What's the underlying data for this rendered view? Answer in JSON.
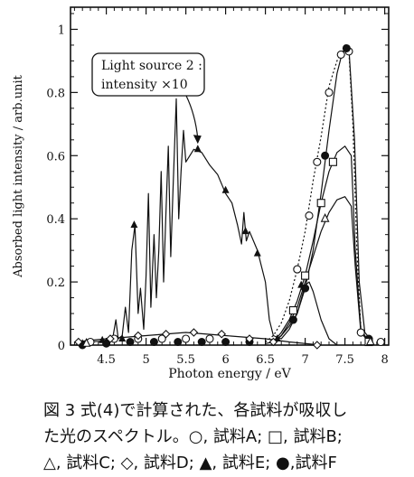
{
  "chart_data": {
    "type": "line",
    "xlabel": "Photon energy / eV",
    "ylabel": "Absorbed light intensity / arb.unit",
    "xlim": [
      4.05,
      8.05
    ],
    "ylim": [
      0,
      1.07
    ],
    "x_ticks": [
      "4.5",
      "5",
      "5.5",
      "6",
      "6.5",
      "7",
      "7.5",
      "8"
    ],
    "y_ticks": [
      "0",
      "0.2",
      "0.4",
      "0.6",
      "0.8",
      "1"
    ],
    "x_tick_values": [
      4.5,
      5,
      5.5,
      6,
      6.5,
      7,
      7.5,
      8
    ],
    "y_tick_values": [
      0,
      0.2,
      0.4,
      0.6,
      0.8,
      1
    ],
    "grid": false,
    "annotation": {
      "line1": "Light source 2 :",
      "line2": "intensity ×10",
      "arrow_to": [
        5.65,
        0.62
      ]
    },
    "series": [
      {
        "marker": "triangle-filled",
        "dash": "solid",
        "points": [
          [
            4.12,
            0.0
          ],
          [
            4.2,
            0.005
          ],
          [
            4.3,
            0.01
          ],
          [
            4.4,
            0.012
          ],
          [
            4.5,
            0.015
          ],
          [
            4.58,
            0.02
          ],
          [
            4.62,
            0.08
          ],
          [
            4.65,
            0.02
          ],
          [
            4.7,
            0.03
          ],
          [
            4.74,
            0.12
          ],
          [
            4.78,
            0.04
          ],
          [
            4.82,
            0.3
          ],
          [
            4.86,
            0.38
          ],
          [
            4.9,
            0.1
          ],
          [
            4.93,
            0.18
          ],
          [
            4.97,
            0.05
          ],
          [
            5.0,
            0.22
          ],
          [
            5.03,
            0.48
          ],
          [
            5.06,
            0.12
          ],
          [
            5.1,
            0.35
          ],
          [
            5.13,
            0.15
          ],
          [
            5.16,
            0.3
          ],
          [
            5.19,
            0.55
          ],
          [
            5.22,
            0.2
          ],
          [
            5.25,
            0.42
          ],
          [
            5.28,
            0.63
          ],
          [
            5.31,
            0.28
          ],
          [
            5.34,
            0.5
          ],
          [
            5.38,
            0.78
          ],
          [
            5.41,
            0.4
          ],
          [
            5.44,
            0.55
          ],
          [
            5.47,
            0.68
          ],
          [
            5.5,
            0.58
          ],
          [
            5.55,
            0.6
          ],
          [
            5.6,
            0.62
          ],
          [
            5.7,
            0.61
          ],
          [
            5.8,
            0.57
          ],
          [
            5.9,
            0.54
          ],
          [
            6.0,
            0.48
          ],
          [
            6.08,
            0.45
          ],
          [
            6.15,
            0.38
          ],
          [
            6.2,
            0.32
          ],
          [
            6.23,
            0.42
          ],
          [
            6.26,
            0.33
          ],
          [
            6.3,
            0.36
          ],
          [
            6.4,
            0.3
          ],
          [
            6.5,
            0.2
          ],
          [
            6.55,
            0.08
          ],
          [
            6.6,
            0.03
          ],
          [
            6.7,
            0.02
          ],
          [
            6.8,
            0.05
          ],
          [
            6.9,
            0.1
          ],
          [
            7.0,
            0.19
          ],
          [
            7.05,
            0.2
          ],
          [
            7.1,
            0.17
          ],
          [
            7.2,
            0.08
          ],
          [
            7.3,
            0.02
          ],
          [
            7.4,
            0.0
          ]
        ],
        "markers": [
          [
            4.2,
            0.005
          ],
          [
            4.45,
            0.015
          ],
          [
            4.7,
            0.02
          ],
          [
            4.85,
            0.38
          ],
          [
            5.65,
            0.62
          ],
          [
            6.0,
            0.49
          ],
          [
            6.25,
            0.36
          ],
          [
            6.4,
            0.29
          ],
          [
            6.65,
            0.02
          ],
          [
            6.95,
            0.19
          ]
        ]
      },
      {
        "marker": "circle-open",
        "dash": "dot",
        "points": [
          [
            6.5,
            0.01
          ],
          [
            6.6,
            0.03
          ],
          [
            6.7,
            0.07
          ],
          [
            6.8,
            0.14
          ],
          [
            6.9,
            0.24
          ],
          [
            7.0,
            0.36
          ],
          [
            7.1,
            0.52
          ],
          [
            7.2,
            0.66
          ],
          [
            7.3,
            0.82
          ],
          [
            7.4,
            0.9
          ],
          [
            7.47,
            0.93
          ],
          [
            7.55,
            0.93
          ],
          [
            7.6,
            0.7
          ],
          [
            7.65,
            0.3
          ],
          [
            7.7,
            0.05
          ],
          [
            7.8,
            0.01
          ]
        ],
        "markers": [
          [
            4.3,
            0.01
          ],
          [
            4.6,
            0.02
          ],
          [
            4.9,
            0.02
          ],
          [
            5.2,
            0.02
          ],
          [
            5.5,
            0.02
          ],
          [
            5.8,
            0.02
          ],
          [
            6.9,
            0.24
          ],
          [
            7.05,
            0.41
          ],
          [
            7.15,
            0.58
          ],
          [
            7.3,
            0.8
          ],
          [
            7.45,
            0.92
          ],
          [
            7.55,
            0.93
          ],
          [
            7.7,
            0.04
          ],
          [
            7.95,
            0.01
          ]
        ]
      },
      {
        "marker": "circle-filled",
        "dash": "solid",
        "points": [
          [
            6.5,
            0.005
          ],
          [
            6.6,
            0.01
          ],
          [
            6.7,
            0.03
          ],
          [
            6.8,
            0.06
          ],
          [
            6.9,
            0.1
          ],
          [
            7.0,
            0.18
          ],
          [
            7.1,
            0.3
          ],
          [
            7.2,
            0.48
          ],
          [
            7.3,
            0.68
          ],
          [
            7.4,
            0.86
          ],
          [
            7.47,
            0.93
          ],
          [
            7.55,
            0.94
          ],
          [
            7.62,
            0.65
          ],
          [
            7.68,
            0.2
          ],
          [
            7.75,
            0.04
          ],
          [
            7.85,
            0.01
          ]
        ],
        "markers": [
          [
            4.2,
            0.0
          ],
          [
            4.5,
            0.005
          ],
          [
            4.8,
            0.01
          ],
          [
            5.1,
            0.01
          ],
          [
            5.4,
            0.01
          ],
          [
            5.7,
            0.01
          ],
          [
            6.0,
            0.01
          ],
          [
            6.3,
            0.01
          ],
          [
            6.85,
            0.08
          ],
          [
            7.0,
            0.18
          ],
          [
            7.25,
            0.6
          ],
          [
            7.52,
            0.94
          ],
          [
            7.8,
            0.02
          ]
        ]
      },
      {
        "marker": "square-open",
        "dash": "solid",
        "points": [
          [
            6.6,
            0.01
          ],
          [
            6.7,
            0.04
          ],
          [
            6.8,
            0.08
          ],
          [
            6.9,
            0.14
          ],
          [
            7.0,
            0.22
          ],
          [
            7.1,
            0.33
          ],
          [
            7.2,
            0.45
          ],
          [
            7.3,
            0.55
          ],
          [
            7.4,
            0.61
          ],
          [
            7.5,
            0.63
          ],
          [
            7.58,
            0.6
          ],
          [
            7.63,
            0.3
          ],
          [
            7.7,
            0.05
          ],
          [
            7.8,
            0.01
          ]
        ],
        "markers": [
          [
            6.85,
            0.11
          ],
          [
            7.0,
            0.22
          ],
          [
            7.2,
            0.45
          ],
          [
            7.35,
            0.58
          ],
          [
            7.8,
            0.01
          ]
        ]
      },
      {
        "marker": "triangle-open",
        "dash": "solid",
        "points": [
          [
            6.6,
            0.01
          ],
          [
            6.7,
            0.03
          ],
          [
            6.8,
            0.07
          ],
          [
            6.9,
            0.12
          ],
          [
            7.0,
            0.2
          ],
          [
            7.1,
            0.28
          ],
          [
            7.2,
            0.36
          ],
          [
            7.3,
            0.42
          ],
          [
            7.4,
            0.46
          ],
          [
            7.5,
            0.47
          ],
          [
            7.58,
            0.44
          ],
          [
            7.63,
            0.25
          ],
          [
            7.7,
            0.04
          ],
          [
            7.8,
            0.01
          ]
        ],
        "markers": [
          [
            4.25,
            0.005
          ],
          [
            7.25,
            0.4
          ],
          [
            7.82,
            0.01
          ]
        ]
      },
      {
        "marker": "diamond-open",
        "dash": "solid",
        "points": [
          [
            4.1,
            0.01
          ],
          [
            4.5,
            0.02
          ],
          [
            5.0,
            0.03
          ],
          [
            5.5,
            0.04
          ],
          [
            6.0,
            0.03
          ],
          [
            6.5,
            0.02
          ],
          [
            6.8,
            0.01
          ],
          [
            7.2,
            0.0
          ]
        ],
        "markers": [
          [
            4.15,
            0.01
          ],
          [
            4.55,
            0.02
          ],
          [
            4.9,
            0.03
          ],
          [
            5.25,
            0.035
          ],
          [
            5.6,
            0.04
          ],
          [
            5.95,
            0.035
          ],
          [
            6.3,
            0.02
          ],
          [
            6.6,
            0.01
          ],
          [
            7.15,
            0.0
          ]
        ]
      }
    ]
  },
  "caption": {
    "line1": "図 3 式(4)で計算された、各試料が吸収し",
    "line2": "た光のスペクトル。○, 試料A; □, 試料B;",
    "line3": "△, 試料C; ◇, 試料D; ▲, 試料E; ●,試料F"
  }
}
